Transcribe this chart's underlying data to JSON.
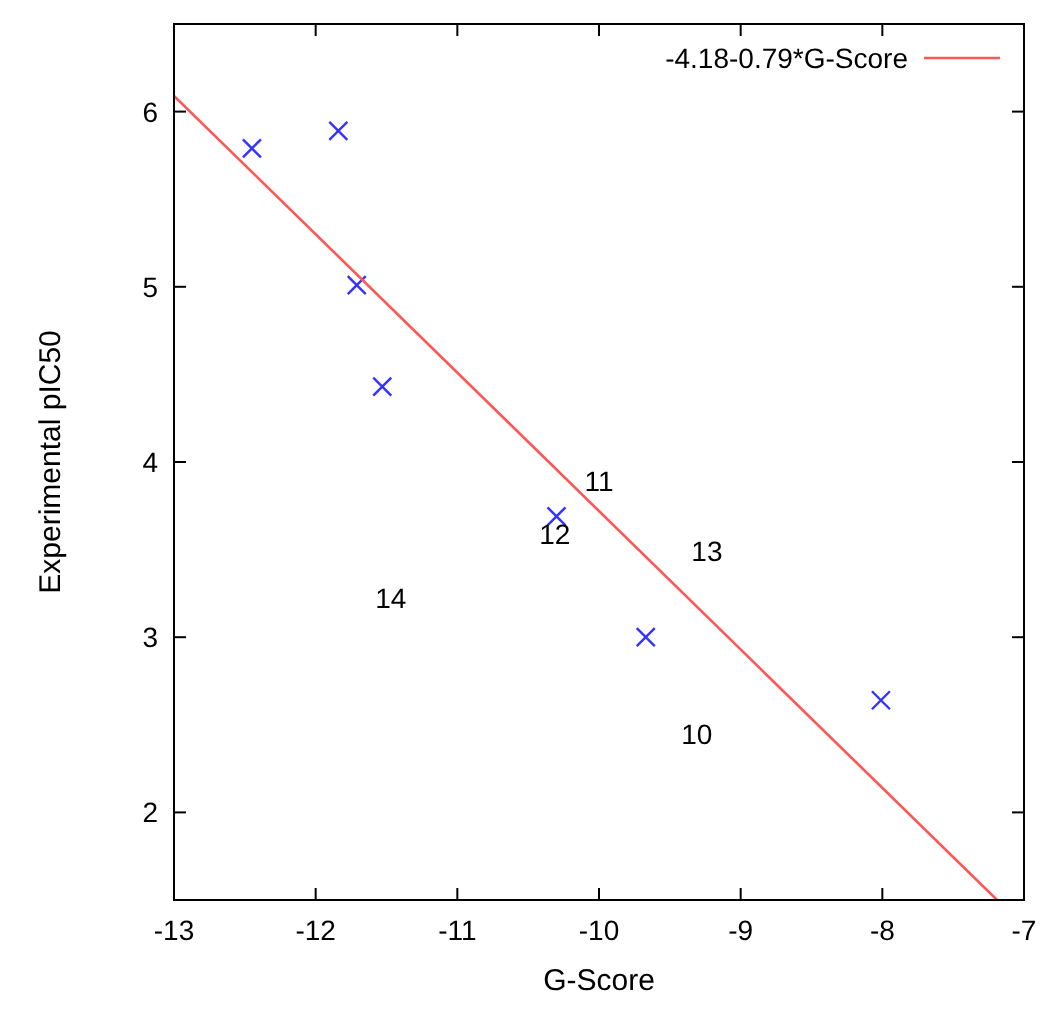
{
  "chart_data": {
    "type": "scatter",
    "xlabel": "G-Score",
    "ylabel": "Experimental pIC50",
    "xlim": [
      -13,
      -7
    ],
    "ylim": [
      1.5,
      6.5
    ],
    "xticks": [
      -13,
      -12,
      -11,
      -10,
      -9,
      -8,
      -7
    ],
    "yticks": [
      2,
      3,
      4,
      5,
      6
    ],
    "grid": false,
    "legend": "top right",
    "series": [
      {
        "color": "#3333ff",
        "marker": "cross",
        "x": [
          -12.45,
          -11.84,
          -11.71,
          -11.53,
          -10.3,
          -9.67,
          -8.01
        ],
        "values": [
          5.79,
          5.89,
          5.01,
          4.43,
          3.69,
          3.0,
          2.64
        ]
      },
      {
        "type": "line",
        "marker": "none",
        "name": "-4.18-0.79*G-Score",
        "color": "#ff5555",
        "x": [
          -13,
          -7.19
        ],
        "values": [
          6.09,
          1.5
        ]
      }
    ],
    "annotations": [
      "10",
      "11",
      "12",
      "13",
      "14"
    ]
  }
}
